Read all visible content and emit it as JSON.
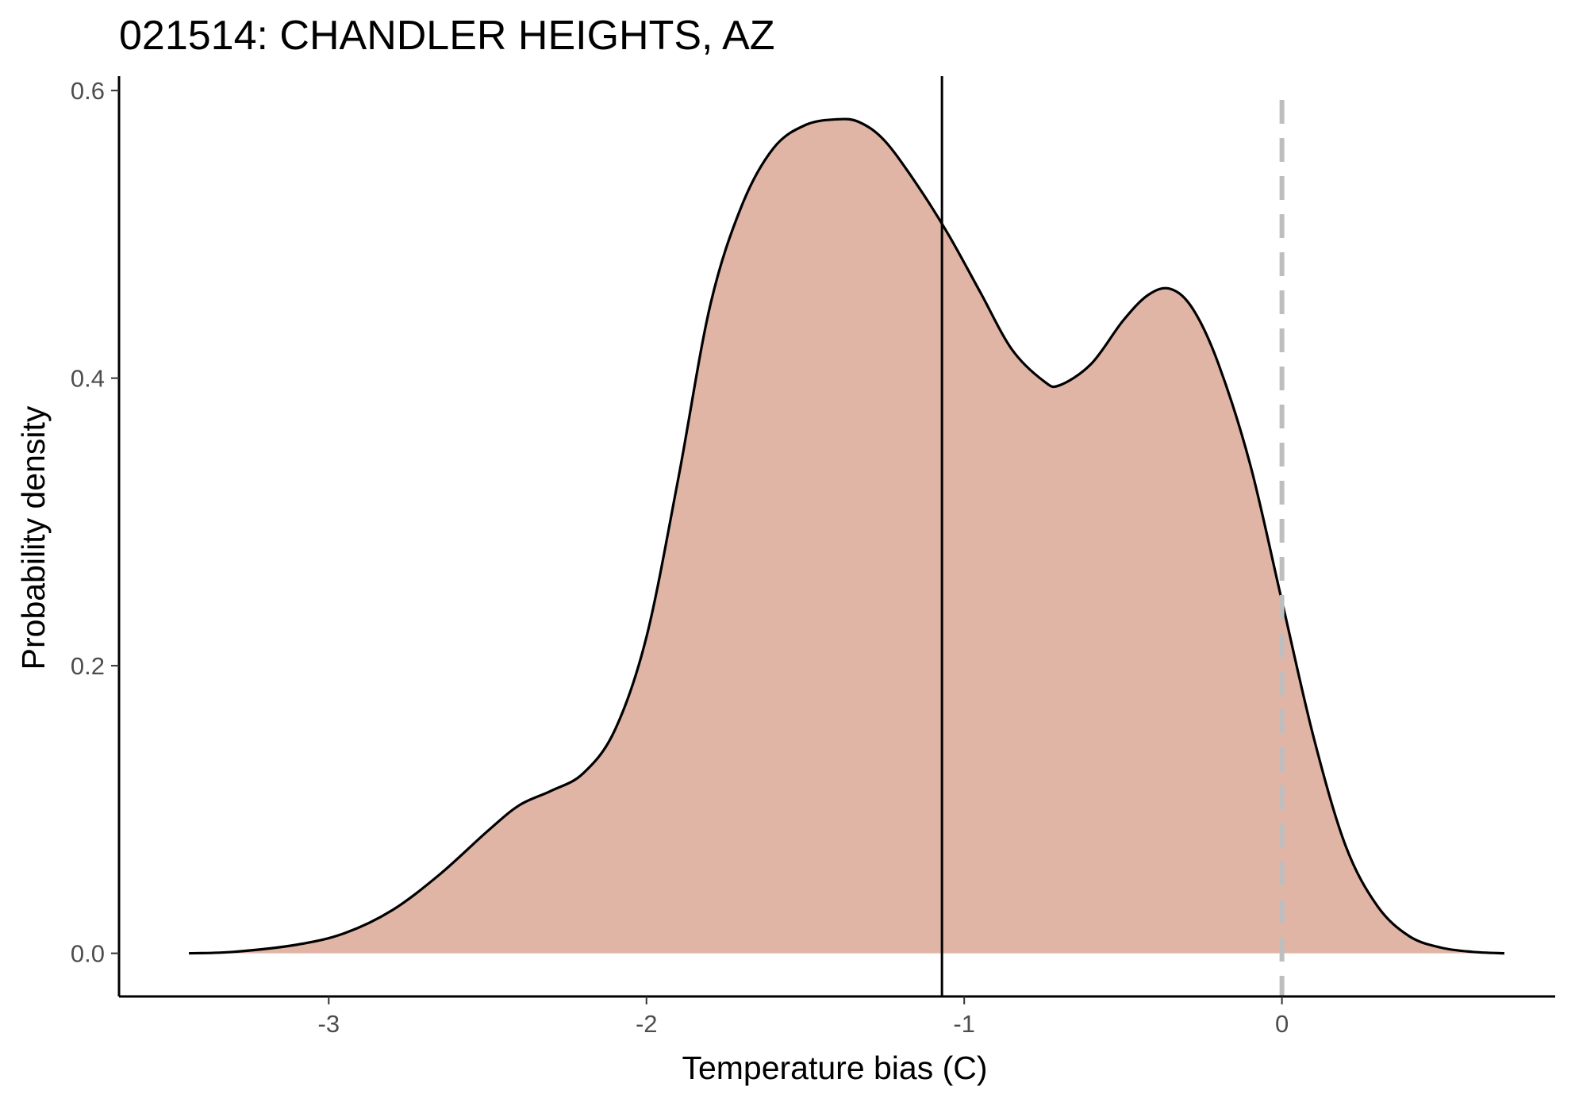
{
  "chart_data": {
    "type": "area",
    "title": "021514: CHANDLER HEIGHTS, AZ",
    "xlabel": "Temperature bias (C)",
    "ylabel": "Probability density",
    "xlim": [
      -3.66,
      0.86
    ],
    "ylim": [
      -0.03,
      0.61
    ],
    "x_ticks": [
      {
        "value": -3,
        "label": "-3"
      },
      {
        "value": -2,
        "label": "-2"
      },
      {
        "value": -1,
        "label": "-1"
      },
      {
        "value": 0,
        "label": "0"
      }
    ],
    "y_ticks": [
      {
        "value": 0.0,
        "label": "0.0"
      },
      {
        "value": 0.2,
        "label": "0.2"
      },
      {
        "value": 0.4,
        "label": "0.4"
      },
      {
        "value": 0.6,
        "label": "0.6"
      }
    ],
    "grid": false,
    "legend": "none",
    "series": [
      {
        "fill_color": "#e0b5a6",
        "line_color": "#000000",
        "x": [
          -3.44,
          -3.3,
          -3.1,
          -2.95,
          -2.8,
          -2.65,
          -2.5,
          -2.4,
          -2.3,
          -2.2,
          -2.1,
          -2.0,
          -1.9,
          -1.8,
          -1.7,
          -1.6,
          -1.5,
          -1.4,
          -1.33,
          -1.25,
          -1.15,
          -1.05,
          -0.95,
          -0.85,
          -0.75,
          -0.7,
          -0.6,
          -0.5,
          -0.42,
          -0.35,
          -0.28,
          -0.2,
          -0.1,
          0.0,
          0.1,
          0.2,
          0.3,
          0.4,
          0.5,
          0.6,
          0.7
        ],
        "y": [
          0.0,
          0.001,
          0.006,
          0.014,
          0.03,
          0.055,
          0.085,
          0.103,
          0.113,
          0.125,
          0.155,
          0.22,
          0.33,
          0.45,
          0.52,
          0.56,
          0.576,
          0.58,
          0.578,
          0.565,
          0.535,
          0.5,
          0.46,
          0.42,
          0.398,
          0.395,
          0.41,
          0.44,
          0.458,
          0.462,
          0.448,
          0.41,
          0.34,
          0.245,
          0.15,
          0.075,
          0.033,
          0.012,
          0.004,
          0.001,
          0.0
        ]
      }
    ],
    "reference_lines": [
      {
        "axis": "x",
        "value": -1.07,
        "style": "solid",
        "color": "#000000"
      },
      {
        "axis": "x",
        "value": 0.0,
        "style": "dashed",
        "color": "#bebebe"
      }
    ]
  }
}
